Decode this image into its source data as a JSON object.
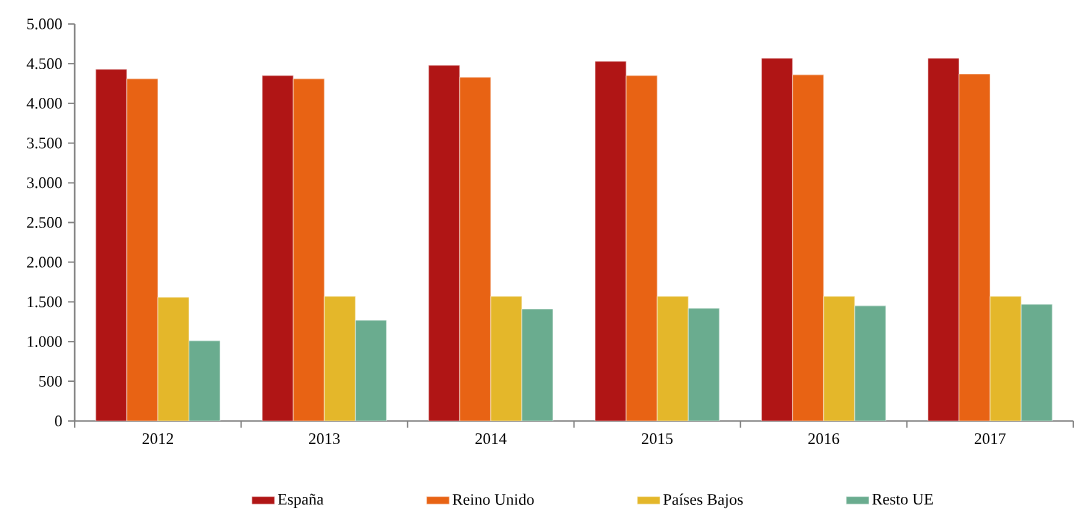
{
  "chart_data": {
    "type": "bar",
    "categories": [
      "2012",
      "2013",
      "2014",
      "2015",
      "2016",
      "2017"
    ],
    "series": [
      {
        "name": "España",
        "color": "#b01515",
        "values": [
          4430,
          4350,
          4480,
          4530,
          4570,
          4570
        ]
      },
      {
        "name": "Reino Unido",
        "color": "#e86314",
        "values": [
          4310,
          4310,
          4330,
          4350,
          4360,
          4370
        ]
      },
      {
        "name": "Países Bajos",
        "color": "#e4b72a",
        "values": [
          1560,
          1570,
          1570,
          1570,
          1570,
          1570
        ]
      },
      {
        "name": "Resto UE",
        "color": "#6aac8f",
        "values": [
          1010,
          1270,
          1410,
          1420,
          1450,
          1470
        ]
      }
    ],
    "ylim": [
      0,
      5000
    ],
    "yticks": [
      {
        "value": 0,
        "label": "0"
      },
      {
        "value": 500,
        "label": "500"
      },
      {
        "value": 1000,
        "label": "1.000"
      },
      {
        "value": 1500,
        "label": "1.500"
      },
      {
        "value": 2000,
        "label": "2.000"
      },
      {
        "value": 2500,
        "label": "2.500"
      },
      {
        "value": 3000,
        "label": "3.000"
      },
      {
        "value": 3500,
        "label": "3.500"
      },
      {
        "value": 4000,
        "label": "4.000"
      },
      {
        "value": 4500,
        "label": "4.500"
      },
      {
        "value": 5000,
        "label": "5.000"
      }
    ],
    "grid": false,
    "legend": "bottom"
  }
}
